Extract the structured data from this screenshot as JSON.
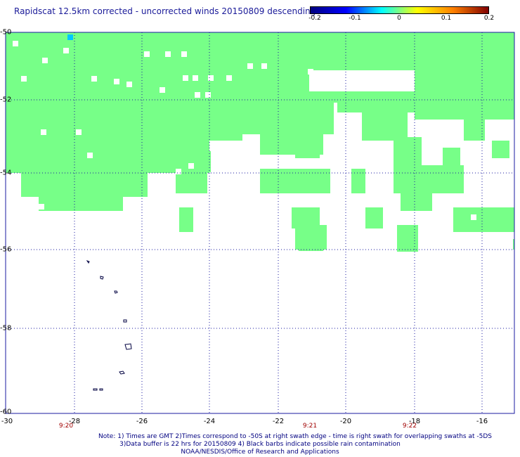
{
  "title": "Rapidscat 12.5km corrected - uncorrected winds 20150809 descending",
  "colorbar": {
    "ticks": [
      "-0.2",
      "-0.1",
      "0",
      "0.1",
      "0.2"
    ],
    "stops": [
      "#000080",
      "#0000ff",
      "#00ffff",
      "#ffff00",
      "#ff8000",
      "#800000"
    ]
  },
  "map": {
    "lat_labels": [
      "-50",
      "-52",
      "-54",
      "-56",
      "-58",
      "-60"
    ],
    "lon_labels": [
      "-30",
      "-28",
      "-26",
      "-24",
      "-22",
      "-20",
      "-18",
      "-16"
    ],
    "time_labels": [
      "9:20",
      "9:21",
      "9:22"
    ],
    "fill_color": "#77ff88",
    "grid_color": "#1a1aa0"
  },
  "notes": {
    "line1": "Note: 1) Times are GMT 2)Times correspond to -50S at right swath edge - time is right swath for overlapping swaths at -5DS",
    "line2": "3)Data buffer is 22 hrs for 20150809 4) Black barbs indicate possible rain contamination",
    "line3": "NOAA/NESDIS/Office of Research and Applications"
  }
}
